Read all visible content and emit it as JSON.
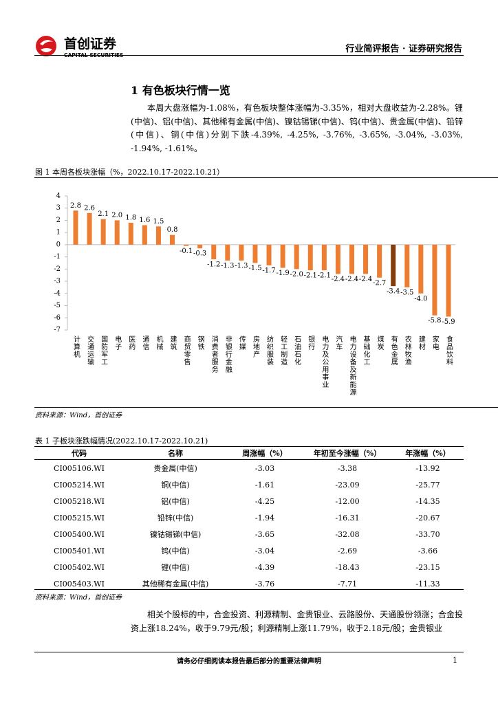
{
  "header": {
    "brand": "首创证券",
    "brand_en": "CAPITAL SECURITIES",
    "report_type": "行业简评报告 · 证券研究报告"
  },
  "section": {
    "title": "1 有色板块行情一览",
    "paragraph": "本周大盘涨幅为-1.08%，有色板块整体涨幅为-3.35%，相对大盘收益为-2.28%。锂(中信)、铝(中信)、其他稀有金属(中信)、镍钴锡锑(中信)、钨(中信)、贵金属(中信)、铅锌(中信)、铜(中信)分别下跌-4.39%, -4.25%, -3.76%, -3.65%, -3.04%, -3.03%, -1.94%, -1.61%。"
  },
  "chart_data": {
    "type": "bar",
    "title": "图 1  本周各板块涨幅（%，2022.10.17-2022.10.21）",
    "categories": [
      "计算机",
      "交通运输",
      "国防军工",
      "电子",
      "医药",
      "通信",
      "机械",
      "建筑",
      "商贸零售",
      "钢铁",
      "消费者服务",
      "非银行金融",
      "传媒",
      "房地产",
      "纺织服装",
      "轻工制造",
      "石油石化",
      "银行",
      "电力及公用事业",
      "汽车",
      "电力设备及新能源",
      "基础化工",
      "煤炭",
      "有色金属",
      "农林牧渔",
      "建材",
      "家电",
      "食品饮料"
    ],
    "values": [
      2.8,
      2.6,
      2.1,
      2.0,
      1.8,
      1.6,
      1.5,
      0.8,
      -0.1,
      -0.3,
      -1.2,
      -1.3,
      -1.3,
      -1.5,
      -1.7,
      -1.9,
      -2.0,
      -2.1,
      -2.1,
      -2.4,
      -2.4,
      -2.4,
      -2.7,
      -3.4,
      -3.5,
      -4.0,
      -5.8,
      -5.9
    ],
    "value_labels": [
      "2.8",
      "2.6",
      "2.1",
      "2.0",
      "1.8",
      "1.6",
      "1.5",
      "0.8",
      "-0.1",
      "-0.3",
      "-1.2",
      "-1.3",
      "-1.3",
      "-1.5",
      "-1.7",
      "-1.9",
      "-2.0",
      "-2.1",
      "-2.1",
      "-2.4",
      "-2.4",
      "-2.4",
      "-2.7",
      "-3.4",
      "-3.5",
      "-4.0",
      "-5.8",
      "-5.9"
    ],
    "colors": [
      "#ED7D31",
      "#ED7D31",
      "#ED7D31",
      "#ED7D31",
      "#ED7D31",
      "#ED7D31",
      "#ED7D31",
      "#ED7D31",
      "#ED7D31",
      "#ED7D31",
      "#ED7D31",
      "#ED7D31",
      "#ED7D31",
      "#ED7D31",
      "#ED7D31",
      "#ED7D31",
      "#ED7D31",
      "#ED7D31",
      "#ED7D31",
      "#ED7D31",
      "#ED7D31",
      "#ED7D31",
      "#ED7D31",
      "#843C0C",
      "#ED7D31",
      "#ED7D31",
      "#ED7D31",
      "#ED7D31"
    ],
    "ylim": [
      -7,
      4
    ],
    "yticks": [
      -7,
      -6,
      -5,
      -4,
      -3,
      -2,
      -1,
      0,
      1,
      2,
      3,
      4
    ],
    "source": "资料来源：Wind，首创证券"
  },
  "table": {
    "caption": "表 1  子板块涨跌幅情况(2022.10.17-2022.10.21)",
    "columns": [
      "代码",
      "名称",
      "周涨幅（%）",
      "年初至今涨幅（%）",
      "年涨幅（%）"
    ],
    "rows": [
      [
        "CI005106.WI",
        "贵金属(中信)",
        "-3.03",
        "-3.38",
        "-13.92"
      ],
      [
        "CI005214.WI",
        "铜(中信)",
        "-1.61",
        "-23.09",
        "-25.77"
      ],
      [
        "CI005218.WI",
        "铝(中信)",
        "-4.25",
        "-12.00",
        "-14.35"
      ],
      [
        "CI005215.WI",
        "铅锌(中信)",
        "-1.94",
        "-16.31",
        "-20.67"
      ],
      [
        "CI005400.WI",
        "镍钴锡锑(中信)",
        "-3.65",
        "-32.08",
        "-33.70"
      ],
      [
        "CI005401.WI",
        "钨(中信)",
        "-3.04",
        "-2.69",
        "-3.66"
      ],
      [
        "CI005402.WI",
        "锂(中信)",
        "-4.39",
        "-18.43",
        "-23.15"
      ],
      [
        "CI005403.WI",
        "其他稀有金属(中信)",
        "-3.76",
        "-7.71",
        "-11.33"
      ]
    ],
    "source": "资料来源：Wind，首创证券"
  },
  "closing": {
    "paragraph": "相关个股标的中，合金投资、利源精制、金贵银业、云路股份、天通股份领涨；合金投资上涨18.24%，收于9.79元/股；利源精制上涨11.79%，收于2.18元/股；金贵银业"
  },
  "footer": {
    "notice": "请务必仔细阅读本报告最后部分的重要法律声明",
    "page": "1"
  }
}
